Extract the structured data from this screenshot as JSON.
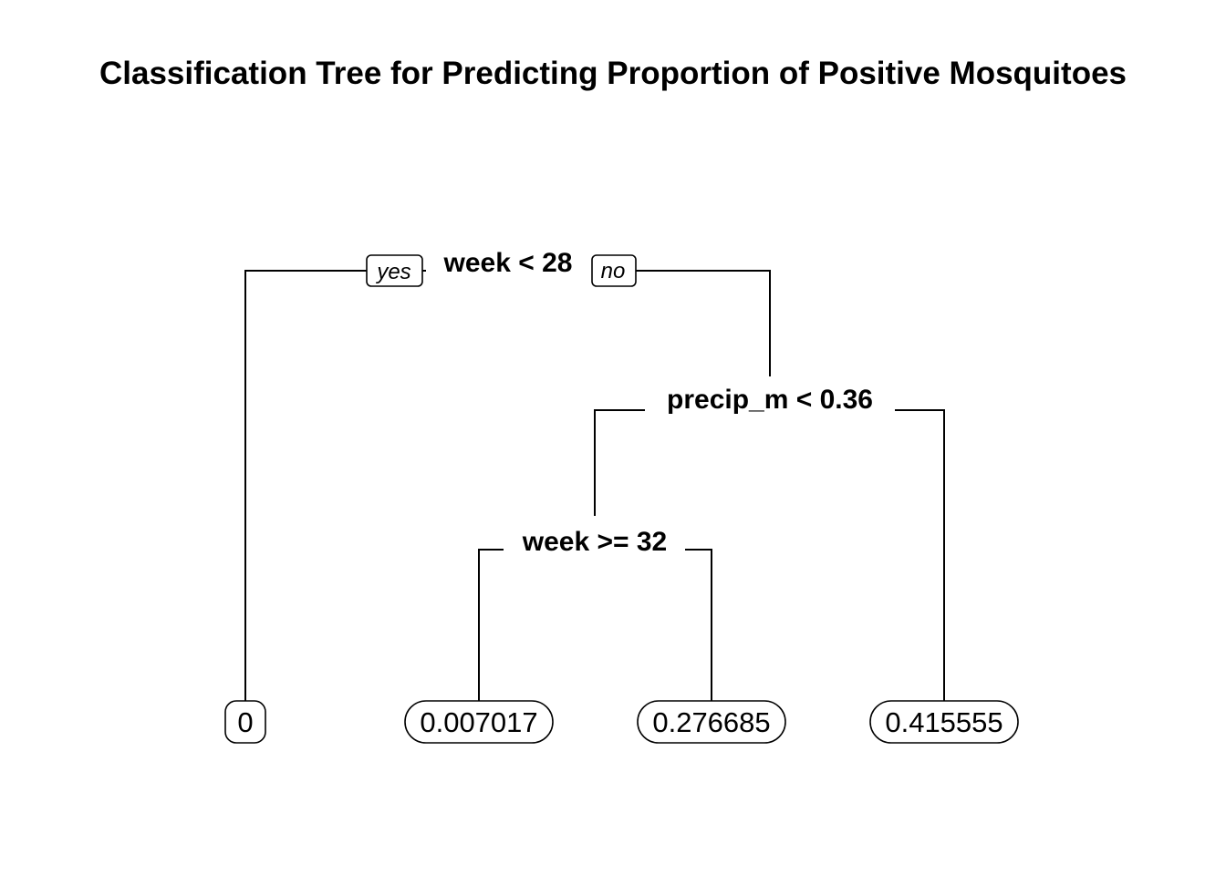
{
  "title": "Classification Tree for Predicting Proportion of Positive Mosquitoes",
  "tree": {
    "root": {
      "split": "week < 28",
      "yes_label": "yes",
      "no_label": "no",
      "yes_leaf": "0",
      "no_node": {
        "split": "precip_m < 0.36",
        "yes_node": {
          "split": "week >= 32",
          "yes_leaf": "0.007017",
          "no_leaf": "0.276685"
        },
        "no_leaf": "0.415555"
      }
    }
  },
  "colors": {
    "line": "#000000",
    "text": "#000000",
    "background": "#ffffff"
  }
}
